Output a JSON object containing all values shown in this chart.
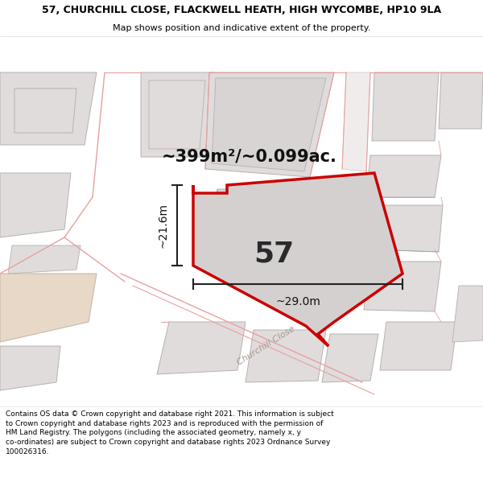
{
  "title_line1": "57, CHURCHILL CLOSE, FLACKWELL HEATH, HIGH WYCOMBE, HP10 9LA",
  "title_line2": "Map shows position and indicative extent of the property.",
  "area_text": "~399m²/~0.099ac.",
  "label_57": "57",
  "dim_width": "~29.0m",
  "dim_height": "~21.6m",
  "road_label": "Churchill Close",
  "footer_text": "Contains OS data © Crown copyright and database right 2021. This information is subject to Crown copyright and database rights 2023 and is reproduced with the permission of HM Land Registry. The polygons (including the associated geometry, namely x, y co-ordinates) are subject to Crown copyright and database rights 2023 Ordnance Survey 100026316.",
  "map_bg": "#ffffff",
  "plot_fill": "#d8d4d4",
  "plot_edge": "#cc0000",
  "pink_line": "#e8a0a0",
  "gray_line": "#a0a0a0",
  "building_fill": "#e0dcdc",
  "building_edge": "#b8b0b0",
  "beige_fill": "#e8d8c8",
  "title_fontsize": 9,
  "subtitle_fontsize": 8,
  "footer_fontsize": 6.5
}
